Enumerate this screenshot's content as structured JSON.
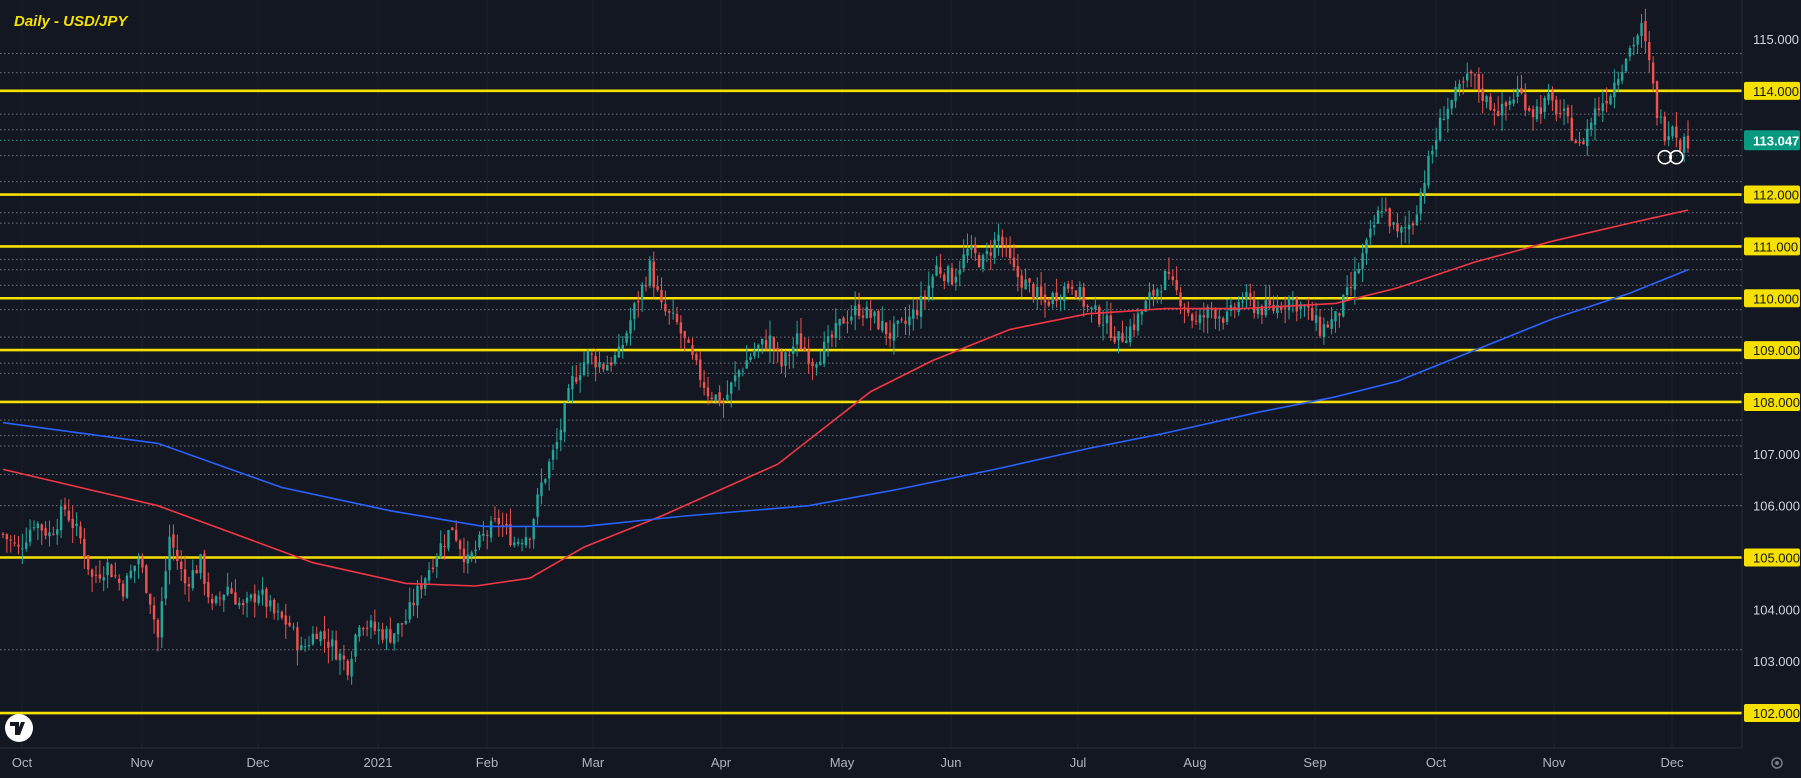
{
  "chart_data": {
    "type": "candlestick",
    "title": "Daily - USD/JPY",
    "y_ticks": [
      "115.000",
      "114.000",
      "113.000",
      "112.000",
      "111.000",
      "110.000",
      "109.000",
      "108.000",
      "107.000",
      "106.000",
      "105.000",
      "104.000",
      "103.000",
      "102.000"
    ],
    "ylim": [
      101.6,
      115.7
    ],
    "current_price": "113.047",
    "x_ticks": [
      "Oct",
      "Nov",
      "Dec",
      "2021",
      "Feb",
      "Mar",
      "Apr",
      "May",
      "Jun",
      "Jul",
      "Aug",
      "Sep",
      "Oct",
      "Nov",
      "Dec"
    ],
    "horizontal_levels": [
      114.0,
      112.0,
      111.0,
      110.0,
      109.0,
      108.0,
      105.0,
      102.0
    ],
    "dotted_levels": [
      114.72,
      114.35,
      113.55,
      113.25,
      112.75,
      112.25,
      111.65,
      111.45,
      110.75,
      110.55,
      110.25,
      109.78,
      109.25,
      108.75,
      108.55,
      107.65,
      107.35,
      107.15,
      106.6,
      106.0,
      103.22
    ],
    "colors": {
      "background": "#131722",
      "up": "#26a69a",
      "down": "#ef5350",
      "level": "#f5e000",
      "ma_fast": "#f23645",
      "ma_slow": "#2962ff"
    },
    "close_path": [
      [
        0,
        105.45
      ],
      [
        4,
        105.15
      ],
      [
        8,
        105.7
      ],
      [
        12,
        105.45
      ],
      [
        16,
        105.95
      ],
      [
        20,
        105.35
      ],
      [
        23,
        104.6
      ],
      [
        27,
        104.85
      ],
      [
        31,
        104.4
      ],
      [
        35,
        105.0
      ],
      [
        38,
        104.2
      ],
      [
        40,
        103.45
      ],
      [
        43,
        105.4
      ],
      [
        47,
        104.5
      ],
      [
        51,
        104.9
      ],
      [
        54,
        104.0
      ],
      [
        58,
        104.45
      ],
      [
        62,
        104.0
      ],
      [
        66,
        104.35
      ],
      [
        70,
        103.9
      ],
      [
        74,
        103.7
      ],
      [
        77,
        103.2
      ],
      [
        81,
        103.6
      ],
      [
        85,
        103.3
      ],
      [
        89,
        102.9
      ],
      [
        92,
        103.8
      ],
      [
        96,
        103.6
      ],
      [
        100,
        103.5
      ],
      [
        104,
        103.8
      ],
      [
        108,
        104.5
      ],
      [
        112,
        105.1
      ],
      [
        116,
        105.6
      ],
      [
        120,
        104.9
      ],
      [
        124,
        105.4
      ],
      [
        128,
        105.7
      ],
      [
        132,
        105.3
      ],
      [
        136,
        105.5
      ],
      [
        139,
        106.4
      ],
      [
        143,
        107.2
      ],
      [
        147,
        108.4
      ],
      [
        151,
        108.9
      ],
      [
        155,
        108.7
      ],
      [
        159,
        108.9
      ],
      [
        163,
        109.8
      ],
      [
        167,
        110.6
      ],
      [
        170,
        109.8
      ],
      [
        174,
        109.5
      ],
      [
        178,
        108.8
      ],
      [
        182,
        108.2
      ],
      [
        186,
        108.0
      ],
      [
        190,
        108.6
      ],
      [
        194,
        109.0
      ],
      [
        198,
        109.2
      ],
      [
        201,
        108.7
      ],
      [
        205,
        109.2
      ],
      [
        209,
        108.8
      ],
      [
        213,
        109.1
      ],
      [
        217,
        109.6
      ],
      [
        221,
        109.8
      ],
      [
        225,
        109.6
      ],
      [
        229,
        109.3
      ],
      [
        233,
        109.5
      ],
      [
        237,
        109.9
      ],
      [
        241,
        110.6
      ],
      [
        245,
        110.4
      ],
      [
        249,
        110.9
      ],
      [
        253,
        110.7
      ],
      [
        257,
        111.2
      ],
      [
        261,
        110.5
      ],
      [
        265,
        110.2
      ],
      [
        269,
        109.9
      ],
      [
        272,
        110.1
      ],
      [
        276,
        110.3
      ],
      [
        280,
        109.8
      ],
      [
        284,
        109.6
      ],
      [
        288,
        109.2
      ],
      [
        292,
        109.5
      ],
      [
        296,
        110.0
      ],
      [
        300,
        110.4
      ],
      [
        304,
        110.0
      ],
      [
        308,
        109.5
      ],
      [
        312,
        109.8
      ],
      [
        316,
        109.6
      ],
      [
        320,
        110.0
      ],
      [
        324,
        109.8
      ],
      [
        328,
        109.8
      ],
      [
        332,
        110.0
      ],
      [
        336,
        109.8
      ],
      [
        340,
        109.4
      ],
      [
        344,
        109.6
      ],
      [
        348,
        110.2
      ],
      [
        352,
        111.0
      ],
      [
        356,
        111.8
      ],
      [
        360,
        111.2
      ],
      [
        364,
        111.5
      ],
      [
        368,
        112.6
      ],
      [
        372,
        113.6
      ],
      [
        376,
        114.0
      ],
      [
        379,
        114.3
      ],
      [
        383,
        113.8
      ],
      [
        387,
        113.6
      ],
      [
        391,
        114.0
      ],
      [
        395,
        113.6
      ],
      [
        399,
        113.8
      ],
      [
        403,
        113.5
      ],
      [
        407,
        112.9
      ],
      [
        411,
        113.6
      ],
      [
        415,
        114.0
      ],
      [
        419,
        114.7
      ],
      [
        423,
        115.2
      ],
      [
        425,
        114.5
      ],
      [
        427,
        113.6
      ],
      [
        429,
        113.2
      ],
      [
        431,
        113.4
      ],
      [
        433,
        113.0
      ],
      [
        435,
        113.05
      ]
    ],
    "ma_fast_path": [
      [
        0,
        106.7
      ],
      [
        40,
        106.0
      ],
      [
        80,
        104.9
      ],
      [
        104,
        104.5
      ],
      [
        122,
        104.45
      ],
      [
        136,
        104.6
      ],
      [
        150,
        105.2
      ],
      [
        170,
        105.8
      ],
      [
        200,
        106.8
      ],
      [
        224,
        108.2
      ],
      [
        240,
        108.8
      ],
      [
        260,
        109.4
      ],
      [
        280,
        109.7
      ],
      [
        300,
        109.8
      ],
      [
        320,
        109.8
      ],
      [
        344,
        109.9
      ],
      [
        360,
        110.2
      ],
      [
        380,
        110.7
      ],
      [
        400,
        111.1
      ],
      [
        420,
        111.45
      ],
      [
        435,
        111.7
      ]
    ],
    "ma_slow_path": [
      [
        0,
        107.6
      ],
      [
        40,
        107.2
      ],
      [
        72,
        106.35
      ],
      [
        100,
        105.9
      ],
      [
        124,
        105.6
      ],
      [
        150,
        105.6
      ],
      [
        176,
        105.8
      ],
      [
        208,
        106.0
      ],
      [
        230,
        106.3
      ],
      [
        256,
        106.7
      ],
      [
        280,
        107.1
      ],
      [
        300,
        107.4
      ],
      [
        324,
        107.8
      ],
      [
        344,
        108.1
      ],
      [
        360,
        108.4
      ],
      [
        380,
        109.0
      ],
      [
        400,
        109.6
      ],
      [
        420,
        110.1
      ],
      [
        435,
        110.55
      ]
    ]
  }
}
